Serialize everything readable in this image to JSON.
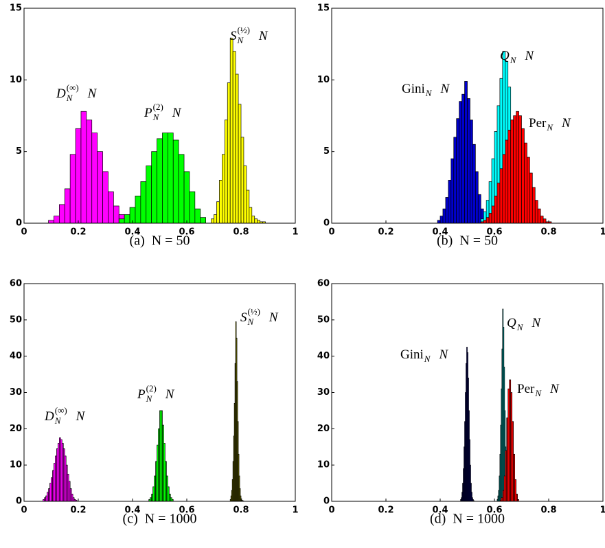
{
  "chart_data": [
    {
      "type": "histogram",
      "caption": "(a)  N = 50",
      "xlim": [
        0,
        1
      ],
      "xticks": [
        0,
        0.2,
        0.4,
        0.6,
        0.8,
        1
      ],
      "ylim": [
        0,
        15
      ],
      "yticks": [
        0,
        5,
        10,
        15
      ],
      "series": [
        {
          "color": "#ff00ff",
          "bins": [
            0.09,
            0.11,
            0.13,
            0.15,
            0.17,
            0.19,
            0.21,
            0.23,
            0.25,
            0.27,
            0.29,
            0.31,
            0.33,
            0.35,
            0.37,
            0.39
          ],
          "counts": [
            0.2,
            0.5,
            1.3,
            2.4,
            4.8,
            6.6,
            7.8,
            7.2,
            6.3,
            5.0,
            3.6,
            2.2,
            1.2,
            0.6,
            0.3
          ]
        },
        {
          "color": "#00ff00",
          "bins": [
            0.35,
            0.37,
            0.39,
            0.41,
            0.43,
            0.45,
            0.47,
            0.49,
            0.51,
            0.53,
            0.55,
            0.57,
            0.59,
            0.61,
            0.63,
            0.65,
            0.67
          ],
          "counts": [
            0.3,
            0.6,
            1.1,
            1.9,
            2.9,
            4.0,
            5.0,
            5.9,
            6.3,
            6.3,
            5.8,
            4.8,
            3.6,
            2.2,
            1.0,
            0.4
          ]
        },
        {
          "color": "#ffff00",
          "bins": [
            0.69,
            0.7,
            0.71,
            0.72,
            0.73,
            0.74,
            0.75,
            0.76,
            0.77,
            0.78,
            0.79,
            0.8,
            0.81,
            0.82,
            0.83,
            0.84,
            0.85,
            0.86,
            0.87,
            0.88,
            0.89
          ],
          "counts": [
            0.3,
            0.6,
            1.5,
            3.0,
            4.8,
            7.2,
            9.8,
            12.9,
            12.0,
            10.4,
            8.3,
            6.0,
            4.0,
            2.3,
            1.1,
            0.5,
            0.3,
            0.2,
            0.1,
            0.1
          ]
        }
      ],
      "annotations": [
        {
          "base": "D",
          "sup": "(∞)",
          "sub": "N",
          "after": "N"
        },
        {
          "base": "P",
          "sup": "(2)",
          "sub": "N",
          "after": "N"
        },
        {
          "base": "S",
          "sup": "(½)",
          "sub": "N",
          "after": "N"
        }
      ]
    },
    {
      "type": "histogram",
      "caption": "(b)  N = 50",
      "xlim": [
        0,
        1
      ],
      "xticks": [
        0,
        0.2,
        0.4,
        0.6,
        0.8,
        1
      ],
      "ylim": [
        0,
        15
      ],
      "yticks": [
        0,
        5,
        10,
        15
      ],
      "series": [
        {
          "color": "#0000cc",
          "bins": [
            0.39,
            0.4,
            0.41,
            0.42,
            0.43,
            0.44,
            0.45,
            0.46,
            0.47,
            0.48,
            0.49,
            0.5,
            0.51,
            0.52,
            0.53,
            0.54,
            0.55,
            0.56,
            0.57,
            0.58,
            0.59
          ],
          "counts": [
            0.2,
            0.5,
            1.0,
            1.8,
            3.0,
            4.5,
            6.0,
            7.3,
            8.5,
            9.0,
            9.9,
            8.7,
            7.2,
            5.5,
            3.6,
            2.0,
            1.0,
            0.5,
            0.2,
            0.1
          ]
        },
        {
          "color": "#00ffff",
          "bins": [
            0.55,
            0.56,
            0.57,
            0.58,
            0.59,
            0.6,
            0.61,
            0.62,
            0.63,
            0.64,
            0.65,
            0.66,
            0.67,
            0.68,
            0.69,
            0.7,
            0.71,
            0.72,
            0.73
          ],
          "counts": [
            0.3,
            0.8,
            1.6,
            2.9,
            4.5,
            6.4,
            8.2,
            10.1,
            12.0,
            11.3,
            9.5,
            7.2,
            5.0,
            3.2,
            1.8,
            0.9,
            0.4,
            0.2
          ]
        },
        {
          "color": "#ff0000",
          "bins": [
            0.55,
            0.56,
            0.57,
            0.58,
            0.59,
            0.6,
            0.61,
            0.62,
            0.63,
            0.64,
            0.65,
            0.66,
            0.67,
            0.68,
            0.69,
            0.7,
            0.71,
            0.72,
            0.73,
            0.74,
            0.75,
            0.76,
            0.77,
            0.78,
            0.79,
            0.8,
            0.81
          ],
          "counts": [
            0.1,
            0.2,
            0.4,
            0.7,
            1.2,
            1.9,
            2.8,
            3.8,
            4.8,
            5.8,
            6.5,
            7.2,
            7.5,
            7.8,
            7.5,
            6.6,
            5.6,
            4.6,
            3.5,
            2.5,
            1.6,
            1.0,
            0.5,
            0.3,
            0.1,
            0.1
          ]
        }
      ],
      "annotations": [
        {
          "base": "Gini",
          "sub": "N",
          "after": "N"
        },
        {
          "base": "Q",
          "sub": "N",
          "after": "N"
        },
        {
          "base": "Per",
          "sub": "N",
          "after": "N"
        }
      ]
    },
    {
      "type": "histogram",
      "caption": "(c)  N = 1000",
      "xlim": [
        0,
        1
      ],
      "xticks": [
        0,
        0.2,
        0.4,
        0.6,
        0.8,
        1
      ],
      "ylim": [
        0,
        60
      ],
      "yticks": [
        0,
        10,
        20,
        30,
        40,
        50,
        60
      ],
      "series": [
        {
          "color": "#ff00ff",
          "bins": [
            0.07,
            0.075,
            0.08,
            0.085,
            0.09,
            0.095,
            0.1,
            0.105,
            0.11,
            0.115,
            0.12,
            0.125,
            0.13,
            0.135,
            0.14,
            0.145,
            0.15,
            0.155,
            0.16,
            0.165,
            0.17,
            0.175,
            0.18,
            0.185,
            0.19,
            0.195
          ],
          "counts": [
            0.5,
            1,
            1.5,
            2.5,
            3.5,
            5,
            6.5,
            8.5,
            10.5,
            12.5,
            14.5,
            16,
            17.5,
            17,
            16,
            14.5,
            12.5,
            10,
            7.5,
            5.5,
            3.5,
            2,
            1,
            0.5,
            0.3
          ]
        },
        {
          "color": "#00ff00",
          "bins": [
            0.46,
            0.465,
            0.47,
            0.475,
            0.48,
            0.485,
            0.49,
            0.495,
            0.5,
            0.505,
            0.51,
            0.515,
            0.52,
            0.525,
            0.53,
            0.535,
            0.54,
            0.545,
            0.55
          ],
          "counts": [
            0.5,
            1,
            2,
            4,
            7,
            11,
            15.5,
            20,
            25,
            25,
            21,
            16,
            11,
            7,
            4,
            2,
            1,
            0.5
          ]
        },
        {
          "color": "#ffff00",
          "bins": [
            0.76,
            0.7625,
            0.765,
            0.7675,
            0.77,
            0.7725,
            0.775,
            0.7775,
            0.78,
            0.7825,
            0.785,
            0.7875,
            0.79,
            0.7925,
            0.795,
            0.7975,
            0.8,
            0.8025,
            0.805,
            0.8075,
            0.81
          ],
          "counts": [
            0.5,
            1.5,
            3,
            6,
            11,
            18,
            27,
            38,
            49.5,
            45,
            33,
            22,
            13,
            7,
            3.5,
            1.5,
            0.7,
            0.3,
            0.2,
            0.1
          ]
        }
      ],
      "annotations": [
        {
          "base": "D",
          "sup": "(∞)",
          "sub": "N",
          "after": "N"
        },
        {
          "base": "P",
          "sup": "(2)",
          "sub": "N",
          "after": "N"
        },
        {
          "base": "S",
          "sup": "(½)",
          "sub": "N",
          "after": "N"
        }
      ]
    },
    {
      "type": "histogram",
      "caption": "(d)  N = 1000",
      "xlim": [
        0,
        1
      ],
      "xticks": [
        0,
        0.2,
        0.4,
        0.6,
        0.8,
        1
      ],
      "ylim": [
        0,
        60
      ],
      "yticks": [
        0,
        10,
        20,
        30,
        40,
        50,
        60
      ],
      "series": [
        {
          "color": "#0000cc",
          "bins": [
            0.475,
            0.4775,
            0.48,
            0.4825,
            0.485,
            0.4875,
            0.49,
            0.4925,
            0.495,
            0.4975,
            0.5,
            0.5025,
            0.505,
            0.5075,
            0.51,
            0.5125,
            0.515,
            0.5175,
            0.52,
            0.5225,
            0.525
          ],
          "counts": [
            0.5,
            1,
            2.5,
            5,
            9,
            15,
            22,
            30,
            38,
            42.5,
            41,
            34,
            25,
            17,
            10,
            5,
            2.5,
            1,
            0.5,
            0.2
          ]
        },
        {
          "color": "#00ffff",
          "bins": [
            0.61,
            0.6125,
            0.615,
            0.6175,
            0.62,
            0.6225,
            0.625,
            0.6275,
            0.63,
            0.6325,
            0.635,
            0.6375,
            0.64,
            0.6425,
            0.645,
            0.6475,
            0.65,
            0.6525,
            0.655
          ],
          "counts": [
            0.5,
            1.5,
            3,
            7,
            13,
            21,
            31,
            42,
            53,
            48,
            37,
            25,
            15,
            8,
            4,
            2,
            0.8,
            0.3
          ]
        },
        {
          "color": "#ff0000",
          "bins": [
            0.62,
            0.625,
            0.63,
            0.635,
            0.64,
            0.645,
            0.65,
            0.655,
            0.66,
            0.665,
            0.67,
            0.675,
            0.68,
            0.685,
            0.69
          ],
          "counts": [
            0.3,
            1,
            3,
            7,
            14,
            23,
            31,
            33.5,
            30,
            22,
            13,
            6,
            2,
            0.5
          ]
        }
      ],
      "annotations": [
        {
          "base": "Gini",
          "sub": "N",
          "after": "N"
        },
        {
          "base": "Q",
          "sub": "N",
          "after": "N"
        },
        {
          "base": "Per",
          "sub": "N",
          "after": "N"
        }
      ]
    }
  ]
}
